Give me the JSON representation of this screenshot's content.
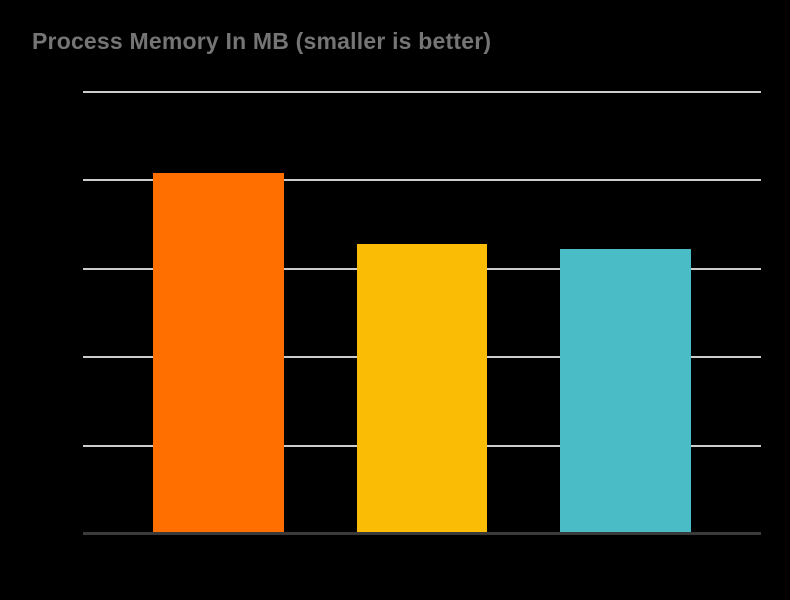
{
  "page": {
    "background_color": "#000000"
  },
  "chart_data": {
    "type": "bar",
    "title": "Process Memory In MB (smaller is better)",
    "title_color": "#757575",
    "xlabel": "",
    "ylabel": "",
    "axis_tick_labels_visible": false,
    "legend_position": "none",
    "grid": true,
    "gridline_color": "#cccccc",
    "axis_line_color": "#3a3a3a",
    "y_gridline_intervals": 5,
    "ylim_gridline_units": [
      0,
      5
    ],
    "value_units_note": "no numeric axis labels visible; values estimated in gridline-interval units",
    "categories": [
      "",
      "",
      ""
    ],
    "bars": [
      {
        "color": "#FF6F00",
        "value_gridline_units": 4.07,
        "center_fraction": 0.2,
        "width_fraction": 0.193
      },
      {
        "color": "#FBBC05",
        "value_gridline_units": 3.27,
        "center_fraction": 0.5,
        "width_fraction": 0.193
      },
      {
        "color": "#49BCC5",
        "value_gridline_units": 3.21,
        "center_fraction": 0.8,
        "width_fraction": 0.193
      }
    ]
  }
}
